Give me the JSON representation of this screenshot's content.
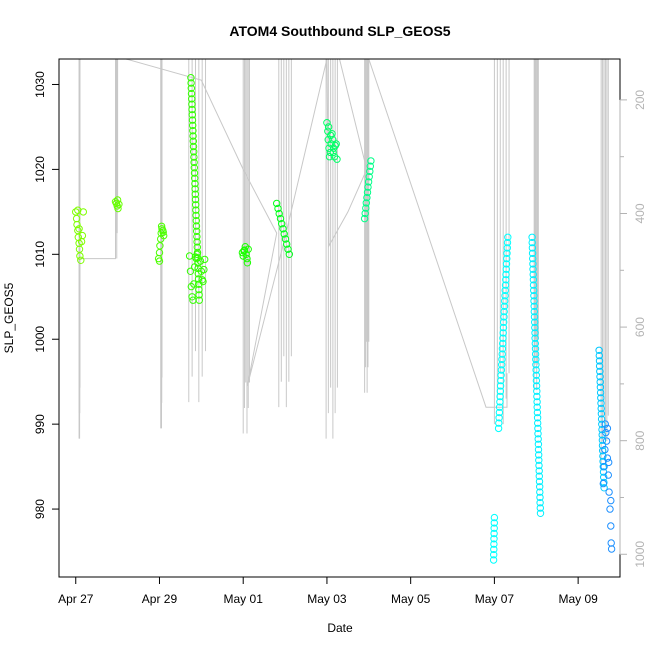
{
  "chart_data": {
    "type": "scatter",
    "title": "ATOM4 Southbound SLP_GEOS5",
    "xlabel": "Date",
    "ylabel": "SLP_GEOS5",
    "x_tick_labels": [
      "Apr 27",
      "Apr 29",
      "May 01",
      "May 03",
      "May 05",
      "May 07",
      "May 09"
    ],
    "x_tick_days": [
      0,
      2,
      4,
      6,
      8,
      10,
      12
    ],
    "xlim_days": [
      -0.4,
      13.0
    ],
    "ylim": [
      972.0,
      1033.0
    ],
    "y_ticks": [
      980,
      990,
      1000,
      1010,
      1020,
      1030
    ],
    "y2_label_ticks": [
      200,
      400,
      600,
      800,
      1000
    ],
    "y2_lim": [
      1040.0,
      128.0
    ],
    "grid": false,
    "legend": "none",
    "colors": {
      "axis": "#000000",
      "secondary_axis": "#b3b3b3",
      "profile_lines": "#c8c8c8"
    },
    "series": [
      {
        "color": "#7fff00",
        "points": [
          [
            0.0,
            1015.0
          ],
          [
            0.02,
            1014.2
          ],
          [
            0.03,
            1013.5
          ],
          [
            0.05,
            1012.8
          ],
          [
            0.06,
            1012.0
          ],
          [
            0.08,
            1011.3
          ],
          [
            0.09,
            1010.6
          ],
          [
            0.1,
            1009.8
          ],
          [
            0.12,
            1009.3
          ],
          [
            0.14,
            1011.5
          ],
          [
            0.16,
            1012.2
          ],
          [
            0.18,
            1015.0
          ],
          [
            0.05,
            1015.2
          ],
          [
            0.08,
            1013.0
          ]
        ]
      },
      {
        "color": "#66ff00",
        "points": [
          [
            0.95,
            1016.2
          ],
          [
            0.97,
            1016.0
          ],
          [
            0.99,
            1015.7
          ],
          [
            1.01,
            1015.4
          ],
          [
            1.03,
            1015.9
          ],
          [
            1.0,
            1016.4
          ]
        ]
      },
      {
        "color": "#4cff00",
        "points": [
          [
            1.98,
            1009.5
          ],
          [
            2.0,
            1010.2
          ],
          [
            2.01,
            1011.0
          ],
          [
            2.03,
            1011.8
          ],
          [
            2.04,
            1012.5
          ],
          [
            2.06,
            1013.0
          ],
          [
            2.08,
            1012.8
          ],
          [
            2.1,
            1012.2
          ],
          [
            2.0,
            1009.2
          ],
          [
            2.05,
            1013.3
          ],
          [
            2.09,
            1012.6
          ]
        ]
      }
    ],
    "extra_series": [
      {
        "color": "#33ff00",
        "fill": "descend",
        "x": [
          2.75,
          2.95
        ],
        "y": [
          1030.8,
          1004.6
        ]
      },
      {
        "color": "#33ff00",
        "fill": "set",
        "points": [
          [
            2.72,
            1009.8
          ],
          [
            2.74,
            1008.0
          ],
          [
            2.76,
            1006.2
          ],
          [
            2.78,
            1005.0
          ],
          [
            2.8,
            1004.6
          ],
          [
            2.82,
            1006.5
          ],
          [
            2.84,
            1008.5
          ],
          [
            2.86,
            1009.7
          ],
          [
            2.98,
            1009.2
          ],
          [
            3.0,
            1008.0
          ],
          [
            3.02,
            1007.0
          ],
          [
            3.04,
            1006.8
          ],
          [
            3.06,
            1008.2
          ],
          [
            3.08,
            1009.4
          ],
          [
            2.9,
            1010.0
          ],
          [
            2.88,
            1009.5
          ]
        ]
      },
      {
        "color": "#1aff00",
        "fill": "set",
        "points": [
          [
            3.98,
            1010.2
          ],
          [
            4.0,
            1009.8
          ],
          [
            4.03,
            1010.5
          ],
          [
            4.05,
            1010.9
          ],
          [
            4.07,
            1010.0
          ],
          [
            4.09,
            1009.5
          ],
          [
            4.1,
            1009.0
          ],
          [
            4.12,
            1010.6
          ],
          [
            4.02,
            1010.4
          ]
        ]
      },
      {
        "color": "#00ff1a",
        "fill": "descend",
        "x": [
          4.8,
          5.1
        ],
        "y": [
          1016.0,
          1010.0
        ]
      },
      {
        "color": "#00ff66",
        "fill": "set",
        "points": [
          [
            6.0,
            1025.5
          ],
          [
            6.02,
            1024.5
          ],
          [
            6.03,
            1023.5
          ],
          [
            6.05,
            1022.5
          ],
          [
            6.06,
            1021.5
          ],
          [
            6.08,
            1022.0
          ],
          [
            6.1,
            1023.0
          ],
          [
            6.12,
            1024.2
          ],
          [
            6.14,
            1023.5
          ],
          [
            6.16,
            1022.5
          ],
          [
            6.18,
            1021.5
          ],
          [
            6.2,
            1022.8
          ],
          [
            6.22,
            1023.0
          ],
          [
            6.24,
            1021.2
          ],
          [
            6.04,
            1025.0
          ],
          [
            6.09,
            1024.0
          ],
          [
            6.15,
            1022.0
          ]
        ]
      },
      {
        "color": "#00ff88",
        "fill": "ascend",
        "x": [
          6.9,
          7.05
        ],
        "y": [
          1014.2,
          1021.0
        ]
      },
      {
        "color": "#00ffff",
        "fill": "ascend",
        "x": [
          9.98,
          10.0
        ],
        "y": [
          974.0,
          979.0
        ]
      },
      {
        "color": "#00ffff",
        "fill": "ascend",
        "x": [
          10.1,
          10.32
        ],
        "y": [
          989.5,
          1012.0
        ]
      },
      {
        "color": "#00f0ff",
        "fill": "descend",
        "x": [
          10.9,
          11.1
        ],
        "y": [
          1012.0,
          979.5
        ]
      },
      {
        "color": "#00c8ff",
        "fill": "descend",
        "x": [
          12.5,
          12.62
        ],
        "y": [
          998.7,
          982.5
        ]
      },
      {
        "color": "#1e90ff",
        "fill": "set",
        "points": [
          [
            12.6,
            983.0
          ],
          [
            12.62,
            985.0
          ],
          [
            12.64,
            987.0
          ],
          [
            12.66,
            989.0
          ],
          [
            12.68,
            988.0
          ],
          [
            12.7,
            986.0
          ],
          [
            12.72,
            984.0
          ],
          [
            12.74,
            982.0
          ],
          [
            12.76,
            980.0
          ],
          [
            12.78,
            978.0
          ],
          [
            12.79,
            976.0
          ],
          [
            12.8,
            975.3
          ],
          [
            12.65,
            990.0
          ],
          [
            12.7,
            989.5
          ],
          [
            12.73,
            985.5
          ],
          [
            12.78,
            981.0
          ]
        ]
      }
    ],
    "profile_lines": [
      {
        "x": [
          0.08,
          0.1
        ],
        "y_top": 1033,
        "y_bottom": 988.3
      },
      {
        "x": [
          0.95,
          1.0
        ],
        "y_top": 1033,
        "y_bottom": 1009.5
      },
      {
        "x": [
          2.03,
          2.06
        ],
        "y_top": 1033,
        "y_bottom": 989.5
      },
      {
        "x": [
          2.7,
          3.1
        ],
        "y_top": 1033,
        "y_bottom": 992.6
      },
      {
        "x": [
          4.0,
          4.15
        ],
        "y_top": 1033,
        "y_bottom": 988.9
      },
      {
        "x": [
          4.85,
          5.15
        ],
        "y_top": 1033,
        "y_bottom": 992.0
      },
      {
        "x": [
          5.98,
          6.25
        ],
        "y_top": 1033,
        "y_bottom": 988.3
      },
      {
        "x": [
          6.9,
          7.0
        ],
        "y_top": 1033,
        "y_bottom": 993.7
      },
      {
        "x": [
          10.0,
          10.35
        ],
        "y_top": 1033,
        "y_bottom": 990.0
      },
      {
        "x": [
          10.95,
          11.05
        ],
        "y_top": 1033,
        "y_bottom": 994.0
      },
      {
        "x": [
          12.55,
          12.72
        ],
        "y_top": 1033,
        "y_bottom": 985.0
      }
    ],
    "track_line": [
      [
        0.08,
        1009.5
      ],
      [
        0.95,
        1009.5
      ],
      [
        0.95,
        1033
      ],
      [
        1.2,
        1033
      ],
      [
        3.0,
        1030.5
      ],
      [
        4.0,
        1020.0
      ],
      [
        4.8,
        1012.5
      ],
      [
        4.1,
        994.5
      ],
      [
        5.0,
        1012.0
      ],
      [
        6.0,
        1033
      ],
      [
        6.05,
        1011.0
      ],
      [
        6.5,
        1015.0
      ],
      [
        6.95,
        1020.0
      ],
      [
        6.3,
        1033
      ],
      [
        7.0,
        1033
      ],
      [
        9.8,
        992.0
      ],
      [
        10.3,
        992.0
      ],
      [
        10.3,
        996.0
      ]
    ]
  }
}
